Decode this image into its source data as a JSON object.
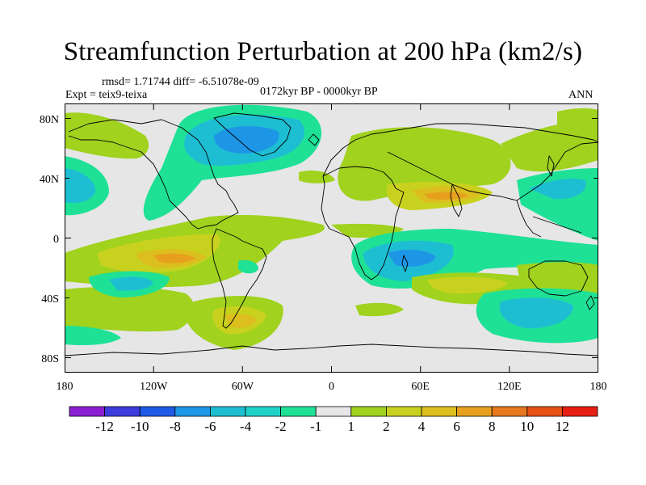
{
  "title": "Streamfunction Perturbation at 200 hPa (km2/s)",
  "stats_line": "rmsd= 1.71744 diff= -6.51078e-09",
  "expt_line": "Expt = teix9-teixa",
  "period_line": "0172kyr BP - 0000kyr BP",
  "season": "ANN",
  "lat_labels": [
    "80N",
    "40N",
    "0",
    "40S",
    "80S"
  ],
  "lon_labels": [
    "180",
    "120W",
    "60W",
    "0",
    "60E",
    "120E",
    "180"
  ],
  "colorbar": {
    "colors": [
      "#8c1ed2",
      "#3c3cdc",
      "#1e5ae6",
      "#1e96e6",
      "#1ebed2",
      "#1ed2c8",
      "#1ee196",
      "#e6e6e6",
      "#a0d21e",
      "#c8d21e",
      "#dcbe1e",
      "#e6a01e",
      "#e6781e",
      "#e65014",
      "#e61e14"
    ],
    "labels": [
      "-12",
      "-10",
      "-8",
      "-6",
      "-4",
      "-2",
      "-1",
      "1",
      "2",
      "4",
      "6",
      "8",
      "10",
      "12"
    ]
  },
  "map_data": {
    "projection": "cylindrical-equidistant",
    "lon_range": [
      -180,
      180
    ],
    "lat_range": [
      -90,
      90
    ],
    "background_color": "#e6e6e6",
    "features": [
      {
        "name": "north-atlantic-negative-center",
        "color": "#1e96e6",
        "lon": -65,
        "lat": 62
      },
      {
        "name": "north-pacific-negative-center",
        "color": "#1ebed2",
        "lon": -162,
        "lat": 30
      },
      {
        "name": "south-pacific-positive-center",
        "color": "#e6a01e",
        "lon": -120,
        "lat": -18
      },
      {
        "name": "indian-ocean-negative-center",
        "color": "#1e96e6",
        "lon": 45,
        "lat": -15
      },
      {
        "name": "south-indian-negative-center",
        "color": "#1ebed2",
        "lon": 120,
        "lat": -55
      },
      {
        "name": "asia-positive-center",
        "color": "#dcbe1e",
        "lon": 65,
        "lat": 25
      }
    ]
  }
}
